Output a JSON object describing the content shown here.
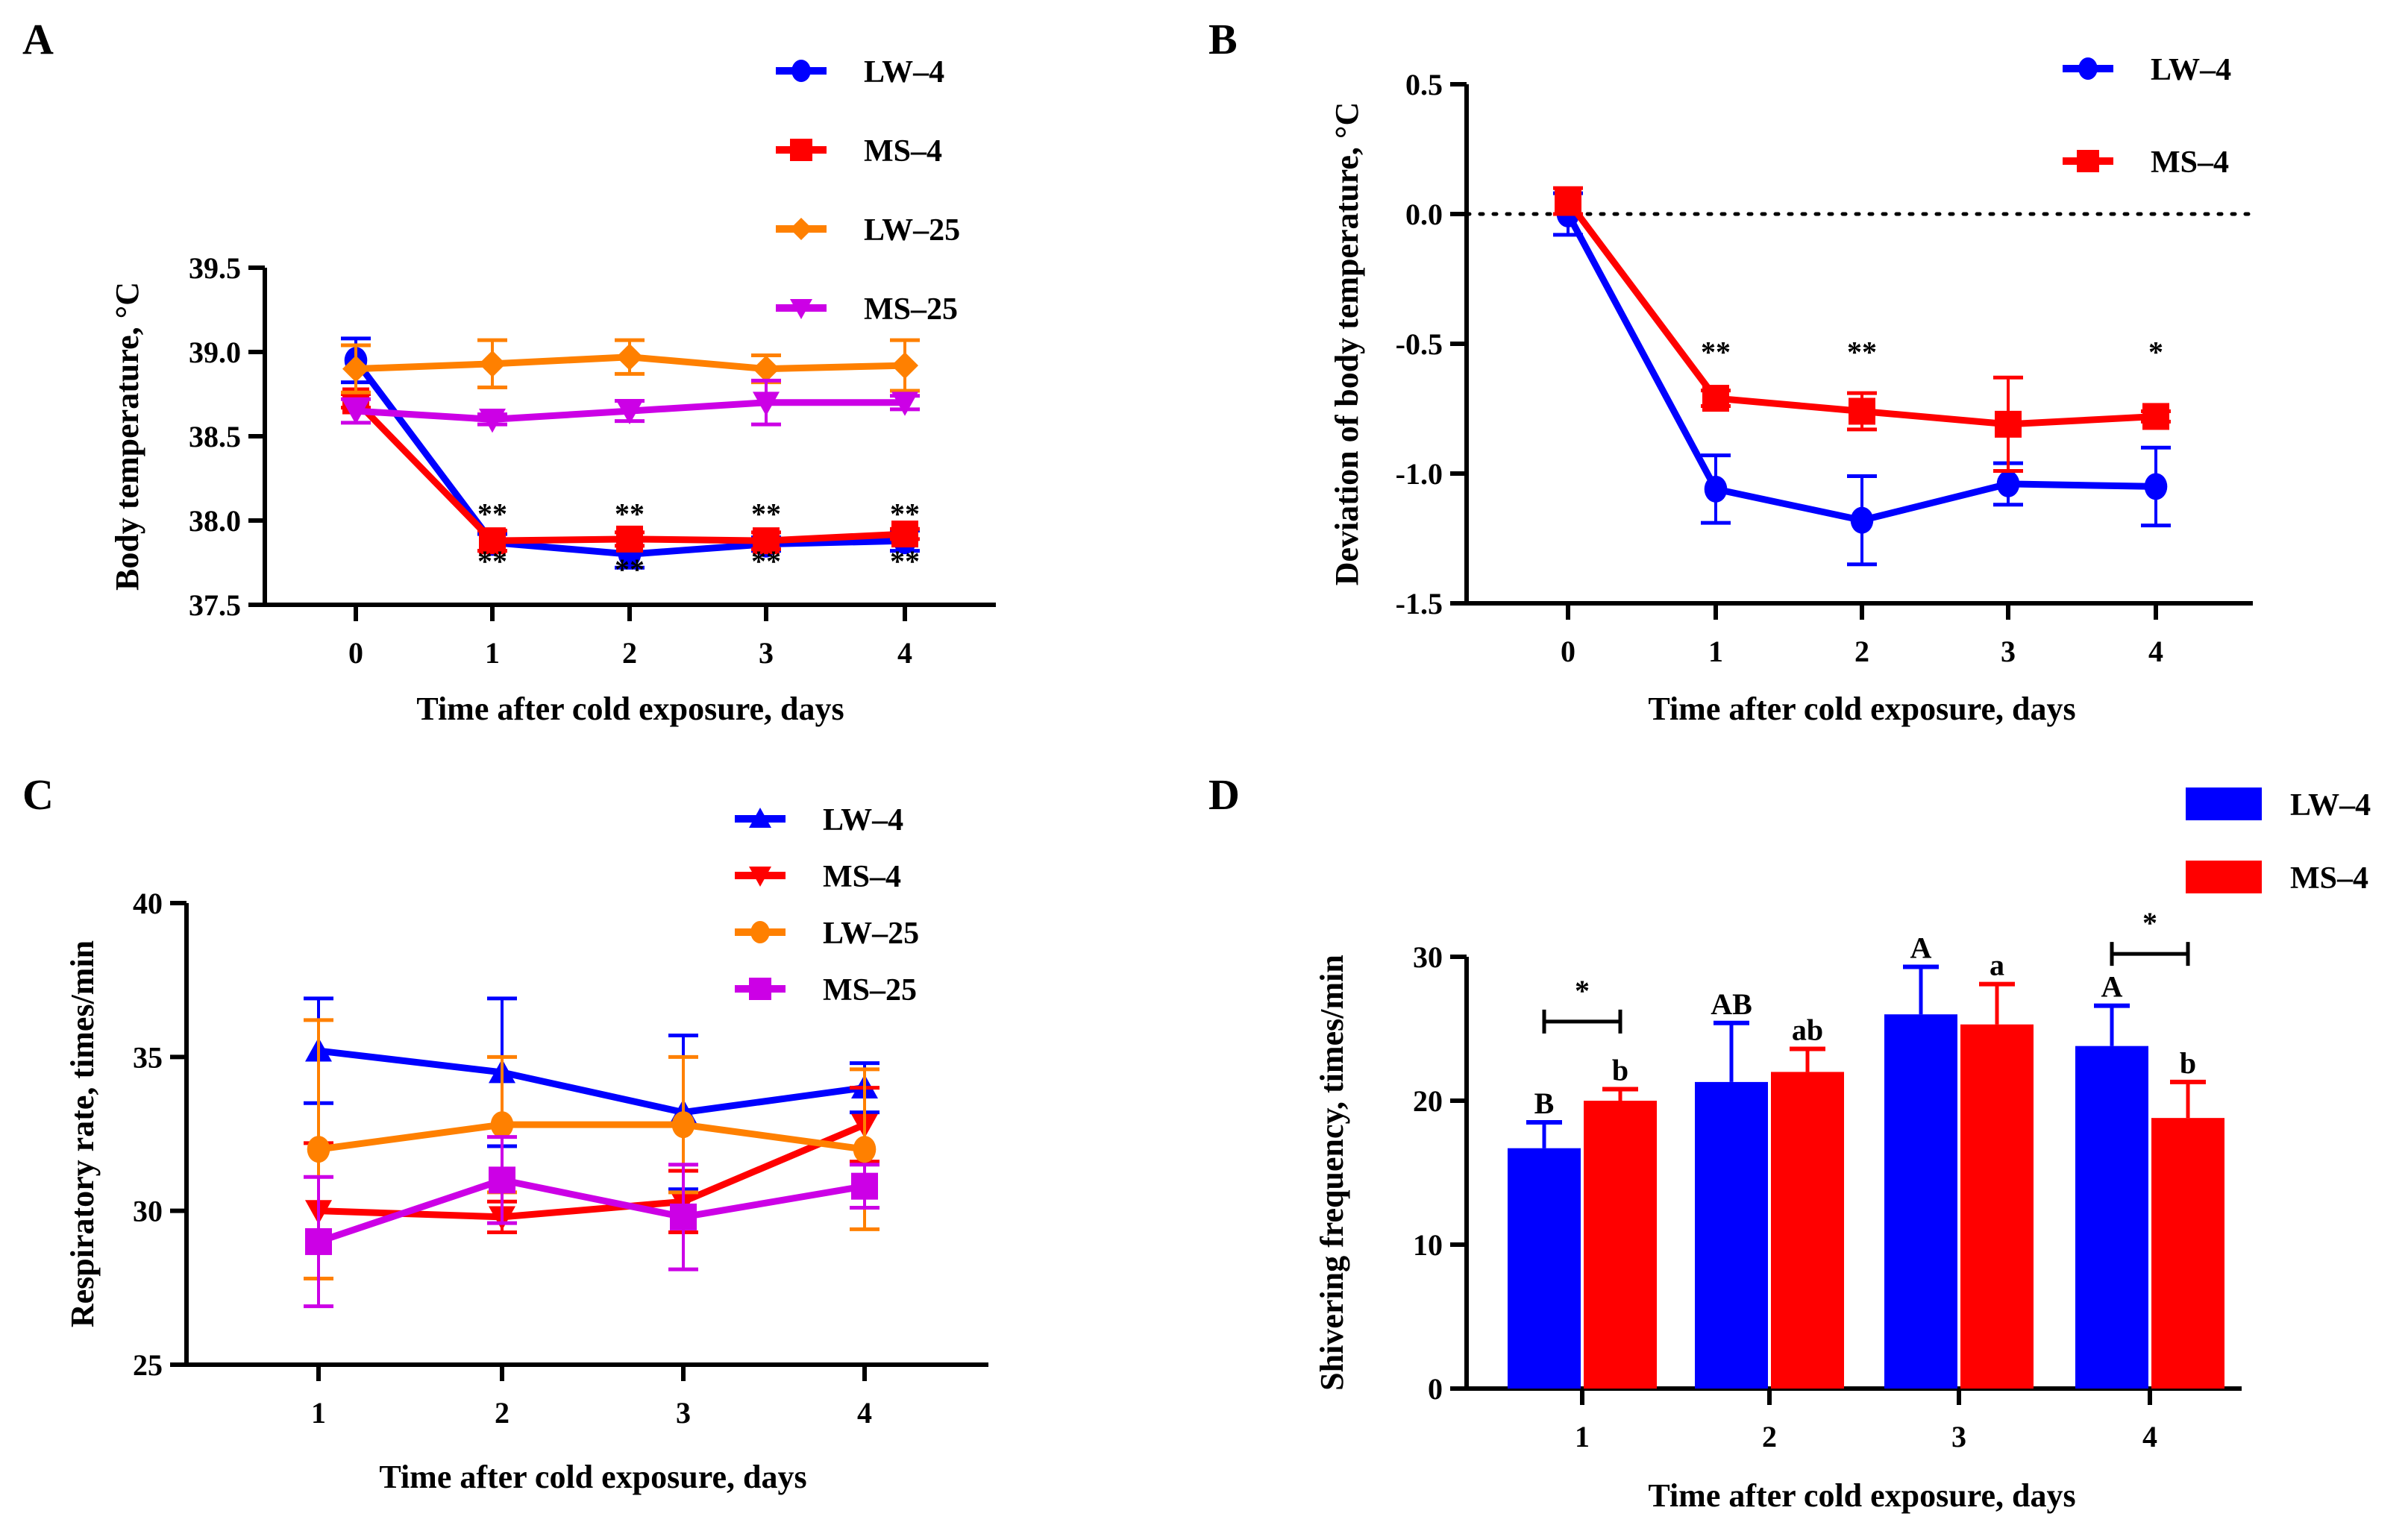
{
  "figure": {
    "panels": [
      "A",
      "B",
      "C",
      "D"
    ]
  },
  "colors": {
    "LW-4": "#0000FF",
    "MS-4": "#FF0000",
    "LW-25": "#FF8000",
    "MS-25": "#CC00E6"
  },
  "chart_data": [
    {
      "panel": "A",
      "type": "line",
      "title": "",
      "xlabel": "Time after cold exposure, days",
      "ylabel": "Body temperature, °C",
      "x": [
        0,
        1,
        2,
        3,
        4
      ],
      "x_tick_labels": [
        "0",
        "1",
        "2",
        "3",
        "4"
      ],
      "ylim": [
        37.5,
        39.5
      ],
      "y_ticks": [
        37.5,
        38.0,
        38.5,
        39.0,
        39.5
      ],
      "y_tick_labels": [
        "37.5",
        "38.0",
        "38.5",
        "39.0",
        "39.5"
      ],
      "grid": false,
      "legend_position": "top-right",
      "series": [
        {
          "name": "LW–4",
          "key": "LW-4",
          "marker": "circle",
          "values": [
            38.95,
            37.87,
            37.8,
            37.86,
            37.88
          ],
          "errors": [
            0.13,
            0.05,
            0.08,
            0.04,
            0.06
          ]
        },
        {
          "name": "MS–4",
          "key": "MS-4",
          "marker": "square",
          "values": [
            38.71,
            37.88,
            37.89,
            37.88,
            37.92
          ],
          "errors": [
            0.04,
            0.06,
            0.04,
            0.05,
            0.03
          ]
        },
        {
          "name": "LW–25",
          "key": "LW-25",
          "marker": "diamond",
          "values": [
            38.9,
            38.93,
            38.97,
            38.9,
            38.92
          ],
          "errors": [
            0.14,
            0.14,
            0.1,
            0.08,
            0.15
          ]
        },
        {
          "name": "MS–25",
          "key": "MS-25",
          "marker": "triangle-down",
          "values": [
            38.65,
            38.6,
            38.65,
            38.7,
            38.7
          ],
          "errors": [
            0.07,
            0.03,
            0.06,
            0.13,
            0.04
          ]
        }
      ],
      "annotations": [
        {
          "x": 1,
          "y": 37.98,
          "text": "**"
        },
        {
          "x": 2,
          "y": 37.98,
          "text": "**"
        },
        {
          "x": 3,
          "y": 37.98,
          "text": "**"
        },
        {
          "x": 4,
          "y": 37.98,
          "text": "**"
        },
        {
          "x": 1,
          "y": 37.7,
          "text": "**"
        },
        {
          "x": 2,
          "y": 37.65,
          "text": "**"
        },
        {
          "x": 3,
          "y": 37.7,
          "text": "**"
        },
        {
          "x": 4,
          "y": 37.7,
          "text": "**"
        }
      ]
    },
    {
      "panel": "B",
      "type": "line",
      "title": "",
      "xlabel": "Time after cold exposure, days",
      "ylabel": "Deviation of body temperature, °C",
      "x": [
        0,
        1,
        2,
        3,
        4
      ],
      "x_tick_labels": [
        "0",
        "1",
        "2",
        "3",
        "4"
      ],
      "ylim": [
        -1.5,
        0.5
      ],
      "y_ticks": [
        -1.5,
        -1.0,
        -0.5,
        0.0,
        0.5
      ],
      "y_tick_labels": [
        "-1.5",
        "-1.0",
        "-0.5",
        "0.0",
        "0.5"
      ],
      "reference_line": 0.0,
      "grid": false,
      "legend_position": "top-right",
      "series": [
        {
          "name": "LW–4",
          "key": "LW-4",
          "marker": "circle",
          "values": [
            0.0,
            -1.06,
            -1.18,
            -1.04,
            -1.05
          ],
          "errors": [
            0.08,
            0.13,
            0.17,
            0.08,
            0.15
          ]
        },
        {
          "name": "MS–4",
          "key": "MS-4",
          "marker": "square",
          "values": [
            0.05,
            -0.71,
            -0.76,
            -0.81,
            -0.78
          ],
          "errors": [
            0.05,
            0.03,
            0.07,
            0.18,
            0.02
          ]
        }
      ],
      "annotations": [
        {
          "x": 1,
          "y": -0.57,
          "text": "**"
        },
        {
          "x": 2,
          "y": -0.57,
          "text": "**"
        },
        {
          "x": 4,
          "y": -0.57,
          "text": "*"
        }
      ]
    },
    {
      "panel": "C",
      "type": "line",
      "title": "",
      "xlabel": "Time after cold exposure, days",
      "ylabel": "Respiratory rate, times/min",
      "x": [
        1,
        2,
        3,
        4
      ],
      "x_tick_labels": [
        "1",
        "2",
        "3",
        "4"
      ],
      "ylim": [
        25,
        40
      ],
      "y_ticks": [
        25,
        30,
        35,
        40
      ],
      "y_tick_labels": [
        "25",
        "30",
        "35",
        "40"
      ],
      "grid": false,
      "legend_position": "top-right",
      "series": [
        {
          "name": "LW–4",
          "key": "LW-4",
          "marker": "triangle-up",
          "values": [
            35.2,
            34.5,
            33.2,
            34.0
          ],
          "errors": [
            1.7,
            2.4,
            2.5,
            0.8
          ]
        },
        {
          "name": "MS–4",
          "key": "MS-4",
          "marker": "triangle-down",
          "values": [
            30.0,
            29.8,
            30.3,
            32.8
          ],
          "errors": [
            2.2,
            0.5,
            1.0,
            1.2
          ]
        },
        {
          "name": "LW–25",
          "key": "LW-25",
          "marker": "circle",
          "values": [
            32.0,
            32.8,
            32.8,
            32.0
          ],
          "errors": [
            4.2,
            2.2,
            2.2,
            2.6
          ]
        },
        {
          "name": "MS–25",
          "key": "MS-25",
          "marker": "square",
          "values": [
            29.0,
            31.0,
            29.8,
            30.8
          ],
          "errors": [
            2.1,
            1.4,
            1.7,
            0.7
          ]
        }
      ],
      "annotations": []
    },
    {
      "panel": "D",
      "type": "bar",
      "title": "",
      "xlabel": "Time after cold exposure, days",
      "ylabel": "Shivering frequency, times/min",
      "categories": [
        "1",
        "2",
        "3",
        "4"
      ],
      "ylim": [
        0,
        30
      ],
      "y_ticks": [
        0,
        10,
        20,
        30
      ],
      "y_tick_labels": [
        "0",
        "10",
        "20",
        "30"
      ],
      "grid": false,
      "legend_position": "top-right",
      "series": [
        {
          "name": "LW–4",
          "key": "LW-4",
          "values": [
            16.7,
            21.3,
            26.0,
            23.8
          ],
          "errors": [
            1.8,
            4.1,
            3.3,
            2.8
          ],
          "letters": [
            "B",
            "AB",
            "A",
            "A"
          ]
        },
        {
          "name": "MS–4",
          "key": "MS-4",
          "values": [
            20.0,
            22.0,
            25.3,
            18.8
          ],
          "errors": [
            0.8,
            1.6,
            2.8,
            2.5
          ],
          "letters": [
            "b",
            "ab",
            "a",
            "b"
          ]
        }
      ],
      "significance_brackets": [
        {
          "category": "1",
          "y": 25.5,
          "text": "*"
        },
        {
          "category": "4",
          "y": 30.2,
          "text": "*"
        }
      ]
    }
  ]
}
